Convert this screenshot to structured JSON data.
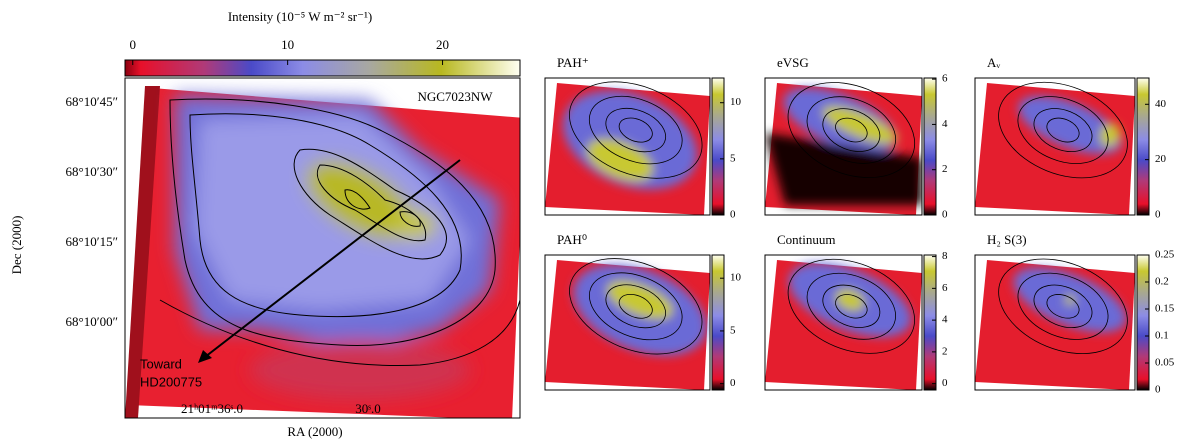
{
  "main": {
    "colorbar_label": "Intensity (10⁻⁵ W m⁻² sr⁻¹)",
    "colorbar_lim": [
      -0.5,
      25
    ],
    "colorbar_ticks": [
      0,
      10,
      20
    ],
    "annotation": "NGC7023NW",
    "arrow_label": [
      "Toward",
      "HD200775"
    ],
    "y_label": "Dec (2000)",
    "x_label": "RA (2000)",
    "y_tick_labels": [
      "68°10′45″",
      "68°10′30″",
      "68°10′15″",
      "68°10′00″"
    ],
    "x_tick_labels": [
      "21ʰ01ᵐ36ˢ.0",
      "30ˢ.0"
    ]
  },
  "panels": [
    {
      "title": "PAH⁺",
      "lim": [
        0,
        12.2
      ],
      "ticks": [
        0,
        5,
        10
      ]
    },
    {
      "title": "eVSG",
      "lim": [
        0,
        6.05
      ],
      "ticks": [
        0,
        2,
        4,
        6
      ]
    },
    {
      "title": "Aᵥ",
      "lim": [
        0,
        49.5
      ],
      "ticks": [
        0,
        20,
        40
      ]
    },
    {
      "title": "PAH⁰",
      "lim": [
        -0.6,
        12.2
      ],
      "ticks": [
        0,
        5,
        10
      ]
    },
    {
      "title": "Continuum",
      "lim": [
        -0.4,
        8.1
      ],
      "ticks": [
        0,
        2,
        4,
        6,
        8
      ]
    },
    {
      "title": "H₂ S(3)",
      "lim": [
        0,
        0.25
      ],
      "ticks": [
        0,
        0.05,
        0.1,
        0.15,
        0.2,
        0.25
      ]
    }
  ]
}
